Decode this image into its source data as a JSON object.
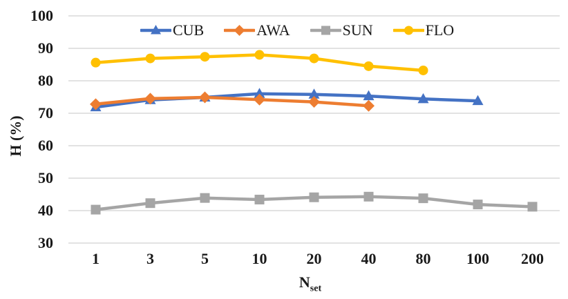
{
  "figure_type": "line-chart-figure",
  "colors": {
    "background": "#ffffff",
    "gridline": "#d9d9d9",
    "text": "#1a1a1a",
    "cub_blue": "#4472c4",
    "awa_orange": "#ed7d31",
    "sun_gray": "#a5a5a5",
    "flo_gold": "#ffc000"
  },
  "chart_data": {
    "type": "line",
    "title": "",
    "ylabel": "H (%)",
    "xlabel": {
      "base": "N",
      "sub": "set"
    },
    "x_categories": [
      "1",
      "3",
      "5",
      "10",
      "20",
      "40",
      "80",
      "100",
      "200"
    ],
    "ylim": [
      30,
      100
    ],
    "yticks": [
      100,
      90,
      80,
      70,
      60,
      50,
      40,
      30
    ],
    "grid": "horizontal-only",
    "legend_position": "top-center",
    "series": [
      {
        "name": "CUB",
        "color": "#4472c4",
        "marker": "triangle",
        "values": [
          71.9,
          74.1,
          74.9,
          76.0,
          75.8,
          75.3,
          74.4,
          73.8,
          null
        ]
      },
      {
        "name": "AWA",
        "color": "#ed7d31",
        "marker": "diamond",
        "values": [
          72.8,
          74.5,
          74.9,
          74.2,
          73.5,
          72.3,
          null,
          null,
          null
        ]
      },
      {
        "name": "SUN",
        "color": "#a5a5a5",
        "marker": "square",
        "values": [
          40.3,
          42.3,
          43.9,
          43.4,
          44.1,
          44.3,
          43.8,
          41.9,
          41.2
        ]
      },
      {
        "name": "FLO",
        "color": "#ffc000",
        "marker": "circle",
        "values": [
          85.6,
          86.9,
          87.4,
          88.0,
          86.9,
          84.5,
          83.2,
          null,
          null
        ]
      }
    ]
  }
}
